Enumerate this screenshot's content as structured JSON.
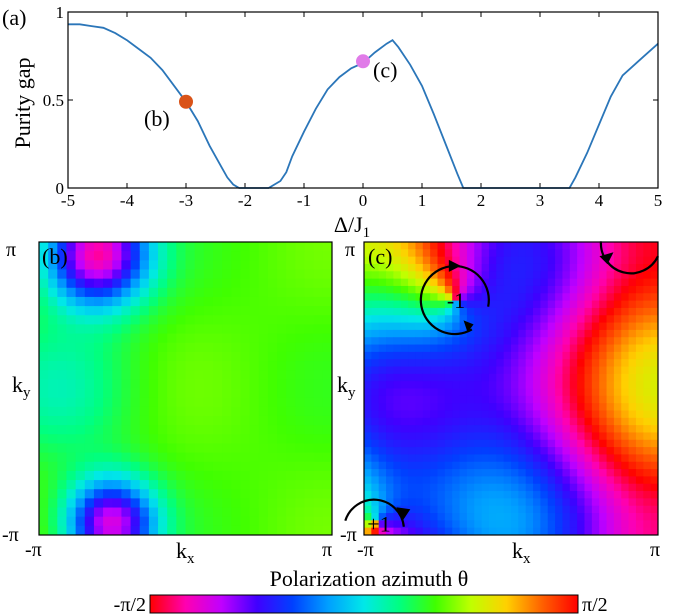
{
  "chart_data": [
    {
      "panel_label": "(a)",
      "type": "line",
      "ylabel": "Purity gap",
      "xlabel": "Δ/J",
      "xlabel_sub": "1",
      "xlim": [
        -5,
        5
      ],
      "ylim": [
        0,
        1
      ],
      "x_ticks": [
        "-5",
        "-4",
        "-3",
        "-2",
        "-1",
        "0",
        "1",
        "2",
        "3",
        "4",
        "5"
      ],
      "y_ticks": [
        "0",
        "0.5",
        "1"
      ],
      "series": [
        {
          "color": "#2b76b9",
          "x": [
            -5,
            -4.8,
            -4.6,
            -4.4,
            -4.2,
            -4.0,
            -3.8,
            -3.6,
            -3.4,
            -3.2,
            -3.0,
            -2.8,
            -2.6,
            -2.4,
            -2.3,
            -2.2,
            -2.1,
            -2.0,
            -1.8,
            -1.6,
            -1.5,
            -1.4,
            -1.3,
            -1.2,
            -1.0,
            -0.8,
            -0.6,
            -0.4,
            -0.2,
            0.0,
            0.2,
            0.4,
            0.5,
            0.6,
            0.8,
            1.0,
            1.2,
            1.4,
            1.6,
            1.7,
            2.0,
            2.5,
            3.0,
            3.3,
            3.5,
            3.6,
            3.8,
            4.0,
            4.2,
            4.4,
            4.6,
            4.8,
            5.0
          ],
          "y": [
            0.93,
            0.93,
            0.92,
            0.91,
            0.88,
            0.84,
            0.79,
            0.74,
            0.67,
            0.58,
            0.49,
            0.38,
            0.24,
            0.12,
            0.06,
            0.02,
            0.0,
            0.0,
            0.0,
            0.0,
            0.02,
            0.04,
            0.09,
            0.18,
            0.32,
            0.45,
            0.56,
            0.63,
            0.68,
            0.71,
            0.77,
            0.82,
            0.84,
            0.8,
            0.7,
            0.58,
            0.42,
            0.25,
            0.08,
            0.0,
            0.0,
            0.0,
            0.0,
            0.0,
            0.0,
            0.06,
            0.2,
            0.36,
            0.52,
            0.64,
            0.7,
            0.76,
            0.82
          ]
        }
      ],
      "markers": [
        {
          "label": "(b)",
          "x": -3.0,
          "y": 0.49,
          "color": "#d95319"
        },
        {
          "label": "(c)",
          "x": 0.0,
          "y": 0.72,
          "color": "#e07be8"
        }
      ]
    },
    {
      "panel_label": "(b)",
      "type": "heatmap",
      "xlabel": "k",
      "xlabel_sub": "x",
      "ylabel": "k",
      "ylabel_sub": "y",
      "x_ticks": [
        "-π",
        "π"
      ],
      "y_ticks": [
        "-π",
        "π"
      ],
      "grid_size": 32,
      "value_range": [
        -1.5708,
        1.5708
      ]
    },
    {
      "panel_label": "(c)",
      "type": "heatmap",
      "xlabel": "k",
      "xlabel_sub": "x",
      "x_ticks": [
        "-π",
        "π"
      ],
      "y_ticks": [
        "-π",
        "π"
      ],
      "grid_size": 40,
      "value_range": [
        -1.5708,
        1.5708
      ],
      "vortices": [
        {
          "label": "-1",
          "kx": -1.2,
          "ky": 1.9
        },
        {
          "label": "+1",
          "kx": -2.9,
          "ky": -2.9
        },
        {
          "label": "",
          "kx": 2.5,
          "ky": 2.9
        }
      ]
    }
  ],
  "colorbar": {
    "title": "Polarization azimuth θ",
    "min_label": "-π/2",
    "max_label": "π/2",
    "colors": [
      "#ff0000",
      "#ff00b0",
      "#c000ff",
      "#4000ff",
      "#0040ff",
      "#00a0ff",
      "#00e8e8",
      "#00ff80",
      "#40ff00",
      "#c0ff00",
      "#ffd000",
      "#ff6000",
      "#ff0000"
    ]
  }
}
